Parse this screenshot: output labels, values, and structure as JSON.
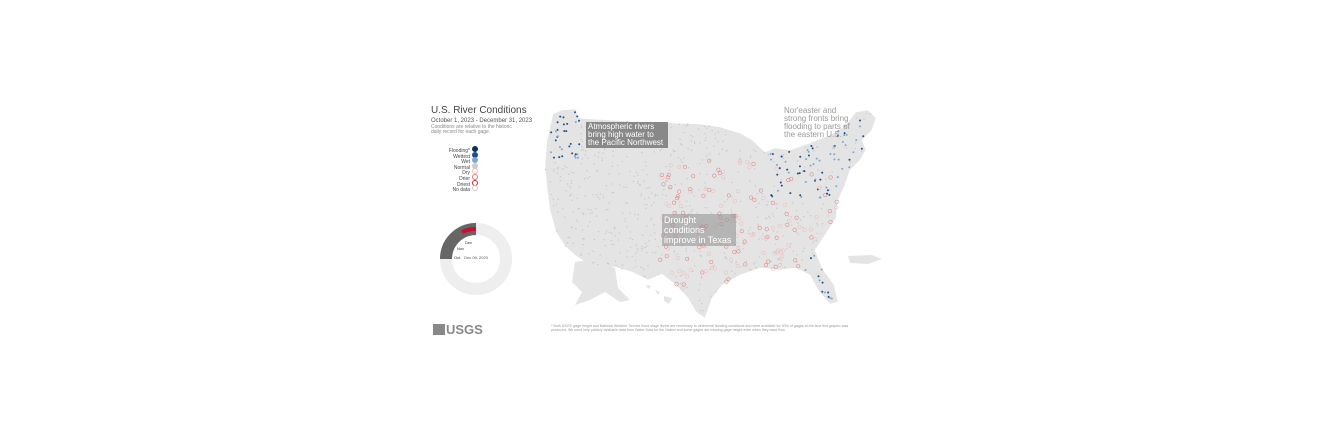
{
  "header": {
    "title": "U.S. River Conditions",
    "date_range": "October 1, 2023 - December 31, 2023",
    "subtitle": "Conditions are relative to the historic daily record for each gage."
  },
  "legend": [
    "Flooding*",
    "Wettest",
    "Wet",
    "Normal",
    "Dry",
    "Drier",
    "Driest",
    "No data"
  ],
  "annotations": [
    "Atmospheric rivers bring high water to the Pacific Northwest",
    "Nor'easter and strong fronts bring flooding to parts of the eastern U.S.",
    "Drought conditions improve in Texas"
  ],
  "dial": {
    "months": [
      "Dec",
      "Nov",
      "Oct"
    ],
    "current_date": "Dec 09, 2023"
  },
  "logo": "USGS",
  "footnote": "* Both USGS gage height and National Weather Service flood stage levels are necessary to determine flooding conditions and were available for 90% of gages at the time this graphic was produced. We used only publicly available data from Water Data for the Nation and some gages are missing gage height even when they have flow."
}
